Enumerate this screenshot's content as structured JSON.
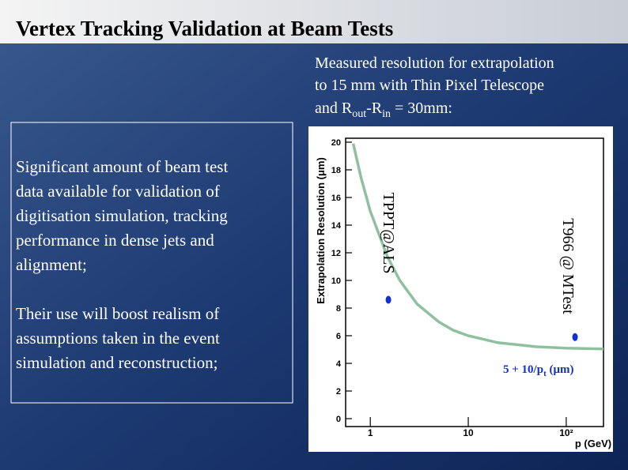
{
  "header": {
    "title": "Vertex Tracking Validation at Beam Tests"
  },
  "intro": [
    "Measured resolution for extrapolation",
    "to 15 mm with Thin Pixel Telescope",
    "and R",
    "out",
    "-R",
    "in",
    " = 30mm:"
  ],
  "text": {
    "paragraphs": [
      [
        "Significant amount of beam test",
        "data available for validation of",
        "digitisation simulation, tracking",
        "performance in dense jets and",
        "alignment;"
      ],
      [
        "Their use will boost realism of",
        "assumptions taken in the event",
        "simulation and reconstruction;"
      ]
    ]
  },
  "chart_data": {
    "type": "scatter",
    "ylabel": "Extrapolation Resolution (μm)",
    "xlabel": "p (GeV)",
    "xscale": "log",
    "xlim": [
      0.56,
      240
    ],
    "xticks": [
      1,
      10,
      {
        "value": 100,
        "label": "10²"
      }
    ],
    "ylim": [
      0,
      20
    ],
    "yticks": [
      0,
      2,
      4,
      6,
      8,
      10,
      12,
      14,
      16,
      18,
      20
    ],
    "curve": {
      "color": "#8fc0a0",
      "x": [
        0.67,
        0.8,
        1,
        1.5,
        2,
        3,
        5,
        7,
        10,
        20,
        50,
        100,
        240
      ],
      "values": [
        19.9,
        17.5,
        15,
        11.7,
        10,
        8.3,
        7,
        6.4,
        6,
        5.5,
        5.2,
        5.1,
        5.04
      ]
    },
    "curve_label": [
      "5 + 10/p",
      "t",
      " (μm)"
    ],
    "series": [
      {
        "name": "TPPT@ALS",
        "color": "#1030d0",
        "x": [
          1.53
        ],
        "values": [
          8.6
        ]
      },
      {
        "name": "T966 @ MTest",
        "color": "#1030d0",
        "x": [
          123
        ],
        "values": [
          5.9
        ]
      }
    ]
  }
}
